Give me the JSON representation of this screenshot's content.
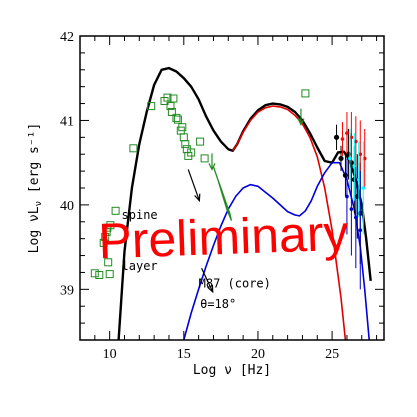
{
  "chart_data": {
    "type": "line",
    "xlabel": "Log ν [Hz]",
    "ylabel": "Log νL",
    "ylabel_sub": "ν",
    "ylabel_units": "[erg s⁻¹]",
    "xlim": [
      8,
      28.5
    ],
    "ylim": [
      38.4,
      42
    ],
    "x_ticks": [
      10,
      15,
      20,
      25
    ],
    "y_ticks": [
      39,
      40,
      41,
      42
    ],
    "grid": false,
    "legend": "none",
    "watermark": "Preliminary",
    "annotations": [
      {
        "text": "spine",
        "x": 10.8,
        "y": 39.83
      },
      {
        "text": "layer",
        "x": 10.8,
        "y": 39.23
      },
      {
        "text": "M87 (core)",
        "x": 16.0,
        "y": 39.02
      },
      {
        "text": "θ=18°",
        "x": 16.1,
        "y": 38.78
      }
    ],
    "arrows": [
      {
        "from": [
          15.3,
          40.42
        ],
        "to": [
          16.05,
          40.05
        ]
      },
      {
        "from": [
          16.2,
          39.25
        ],
        "to": [
          16.95,
          38.97
        ]
      }
    ],
    "colors": {
      "total": "#000000",
      "spine": "#e00000",
      "layer": "#0000dd",
      "optical_uv": "#228b22",
      "archival": "#228b22",
      "hess_red": "#ff0000",
      "magic_cyan": "#00ffff",
      "veritas_blue": "#0000cc"
    },
    "series": [
      {
        "name": "total",
        "color": "#000000",
        "x": [
          10.6,
          11.0,
          11.5,
          12.0,
          12.5,
          13.0,
          13.5,
          14.0,
          14.5,
          15.0,
          15.5,
          16.0,
          16.5,
          17.0,
          17.5,
          18.0,
          18.3,
          18.6,
          19.0,
          19.5,
          20.0,
          20.5,
          21.0,
          21.5,
          22.0,
          22.5,
          23.0,
          23.5,
          24.0,
          24.5,
          25.0,
          25.4,
          25.8,
          26.2,
          26.6,
          27.0,
          27.3,
          27.6
        ],
        "y": [
          38.4,
          39.45,
          40.2,
          40.72,
          41.1,
          41.42,
          41.6,
          41.62,
          41.58,
          41.5,
          41.4,
          41.25,
          41.05,
          40.88,
          40.75,
          40.66,
          40.64,
          40.72,
          40.87,
          41.02,
          41.12,
          41.18,
          41.2,
          41.19,
          41.16,
          41.1,
          41.0,
          40.85,
          40.68,
          40.52,
          40.5,
          40.62,
          40.63,
          40.52,
          40.3,
          40.0,
          39.6,
          39.1
        ]
      },
      {
        "name": "spine",
        "color": "#e00000",
        "x": [
          18.3,
          18.6,
          19.0,
          19.5,
          20.0,
          20.5,
          21.0,
          21.5,
          22.0,
          22.5,
          23.0,
          23.5,
          24.0,
          24.5,
          25.0,
          25.3,
          25.6,
          25.9
        ],
        "y": [
          40.64,
          40.72,
          40.86,
          41.0,
          41.1,
          41.15,
          41.17,
          41.16,
          41.13,
          41.06,
          40.96,
          40.8,
          40.57,
          40.2,
          39.7,
          39.3,
          38.9,
          38.4
        ]
      },
      {
        "name": "layer",
        "color": "#0000dd",
        "x": [
          15.0,
          15.5,
          16.0,
          16.5,
          17.0,
          17.5,
          18.0,
          18.5,
          19.0,
          19.5,
          20.0,
          20.5,
          21.0,
          21.5,
          22.0,
          22.5,
          22.8,
          23.2,
          23.6,
          24.0,
          24.5,
          25.0,
          25.5,
          26.0,
          26.5,
          26.9,
          27.2,
          27.5
        ],
        "y": [
          38.4,
          38.72,
          39.0,
          39.27,
          39.52,
          39.75,
          39.95,
          40.1,
          40.2,
          40.24,
          40.22,
          40.15,
          40.08,
          40.0,
          39.92,
          39.88,
          39.87,
          39.93,
          40.05,
          40.22,
          40.38,
          40.5,
          40.5,
          40.3,
          39.95,
          39.5,
          39.0,
          38.4
        ]
      },
      {
        "name": "optical-uv",
        "color": "#228b22",
        "x": [
          17.0,
          17.3,
          17.6,
          17.9,
          18.2,
          18.1,
          17.8,
          17.5,
          17.2,
          17.0
        ],
        "y": [
          40.45,
          40.3,
          40.12,
          39.95,
          39.82,
          39.9,
          40.05,
          40.2,
          40.35,
          40.45
        ]
      }
    ],
    "archival_points": {
      "x": [
        9.0,
        9.3,
        9.6,
        9.7,
        9.8,
        9.85,
        9.9,
        10.0,
        10.05,
        10.4,
        11.6,
        12.8,
        13.7,
        13.9,
        14.1,
        14.2,
        14.3,
        14.5,
        14.6,
        14.8,
        14.9,
        15.0,
        15.1,
        15.2,
        15.3,
        15.5,
        16.1,
        16.4,
        23.2
      ],
      "y": [
        39.19,
        39.17,
        39.55,
        39.62,
        39.68,
        39.73,
        39.32,
        39.18,
        39.76,
        39.93,
        40.67,
        41.17,
        41.23,
        41.27,
        41.17,
        41.1,
        41.26,
        41.03,
        41.01,
        40.88,
        40.92,
        40.8,
        40.72,
        40.66,
        40.58,
        40.62,
        40.75,
        40.55,
        41.32
      ]
    },
    "upper_limits": [
      {
        "x": 16.9,
        "y": 40.42
      },
      {
        "x": 22.9,
        "y": 40.95
      }
    ],
    "gamma_points": {
      "black": {
        "x": [
          25.3,
          25.6,
          25.9,
          26.1,
          26.3,
          26.5,
          26.7,
          26.9
        ],
        "y": [
          40.8,
          40.55,
          40.35,
          40.6,
          40.5,
          40.3,
          40.1,
          39.9
        ],
        "err": [
          0.15,
          0.15,
          0.25,
          0.3,
          0.35,
          0.4,
          0.5,
          0.6
        ]
      },
      "red": {
        "x": [
          25.7,
          26.0,
          26.3,
          26.6,
          26.9,
          27.2
        ],
        "y": [
          40.78,
          40.85,
          40.8,
          40.75,
          40.6,
          40.55
        ],
        "err": [
          0.2,
          0.25,
          0.3,
          0.3,
          0.4,
          0.35
        ]
      },
      "cyan": {
        "x": [
          26.2,
          26.5,
          26.8,
          27.1
        ],
        "y": [
          40.55,
          40.45,
          40.3,
          40.2
        ],
        "err": [
          0.35,
          0.4,
          0.45,
          0.55
        ]
      },
      "blue": {
        "x": [
          26.0,
          26.3,
          26.6,
          26.9
        ],
        "y": [
          40.1,
          39.95,
          39.85,
          39.7
        ],
        "err": [
          0.45,
          0.55,
          0.6,
          0.7
        ]
      }
    }
  }
}
